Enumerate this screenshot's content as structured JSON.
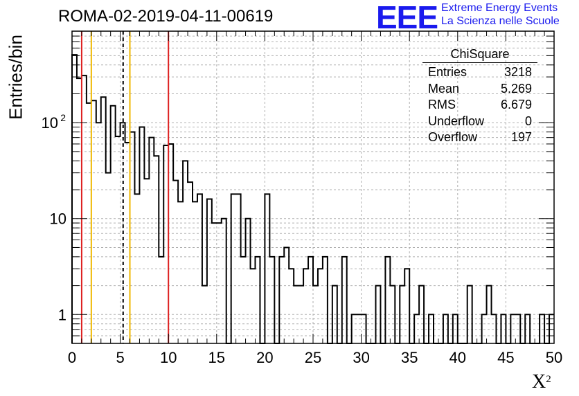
{
  "header": {
    "title": "ROMA-02-2019-04-11-00619",
    "logo_text": "EEE",
    "logo_line1": "Extreme Energy Events",
    "logo_line2": "La Scienza nelle Scuole"
  },
  "stats": {
    "title": "ChiSquare",
    "rows": [
      {
        "label": "Entries",
        "value": "3218"
      },
      {
        "label": "Mean",
        "value": "5.269"
      },
      {
        "label": "RMS",
        "value": "6.679"
      },
      {
        "label": "Underflow",
        "value": "0"
      },
      {
        "label": "Overflow",
        "value": "197"
      }
    ]
  },
  "colors": {
    "histogram": "#000000",
    "red_lines": "#dd2020",
    "yellow_lines": "#f0b800",
    "dashed_line": "#000000",
    "logo": "#1a1aee"
  },
  "chart_data": {
    "type": "histogram",
    "xlabel": "X",
    "xlabel_superscript": "2",
    "ylabel": "Entries/bin",
    "log_y": true,
    "grid": true,
    "xlim": [
      0,
      50
    ],
    "ylim": [
      0.5,
      900
    ],
    "bin_width": 0.5,
    "x_ticks": [
      0,
      5,
      10,
      15,
      20,
      25,
      30,
      35,
      40,
      45,
      50
    ],
    "y_ticks": [
      {
        "value": 1,
        "label": "1"
      },
      {
        "value": 10,
        "label": "10"
      },
      {
        "value": 100,
        "label": "10",
        "sup": "2"
      }
    ],
    "values": [
      510,
      290,
      310,
      160,
      170,
      100,
      185,
      30,
      150,
      72,
      100,
      62,
      80,
      18,
      90,
      26,
      70,
      45,
      4,
      58,
      60,
      25,
      15,
      40,
      24,
      15,
      18,
      2,
      16,
      9,
      9,
      10,
      0,
      18,
      18,
      4,
      10,
      3,
      4,
      0,
      18,
      4,
      0,
      4,
      5,
      3,
      2,
      2,
      3,
      4,
      2,
      3,
      4,
      0,
      2,
      0,
      4,
      0,
      1,
      1,
      1,
      0,
      0,
      2,
      0,
      4,
      2,
      0,
      2,
      3,
      0,
      1,
      2,
      0,
      1,
      0,
      0,
      1,
      0,
      1,
      0,
      0,
      2,
      0,
      0,
      1,
      2,
      1,
      0,
      1,
      0,
      1,
      1,
      0,
      1,
      0,
      0,
      1,
      0,
      1
    ],
    "vertical_lines": [
      {
        "x": 1.0,
        "color": "red"
      },
      {
        "x": 2.0,
        "color": "yellow"
      },
      {
        "x": 5.3,
        "color": "black-dashed"
      },
      {
        "x": 6.0,
        "color": "yellow"
      },
      {
        "x": 10.0,
        "color": "red"
      }
    ]
  }
}
